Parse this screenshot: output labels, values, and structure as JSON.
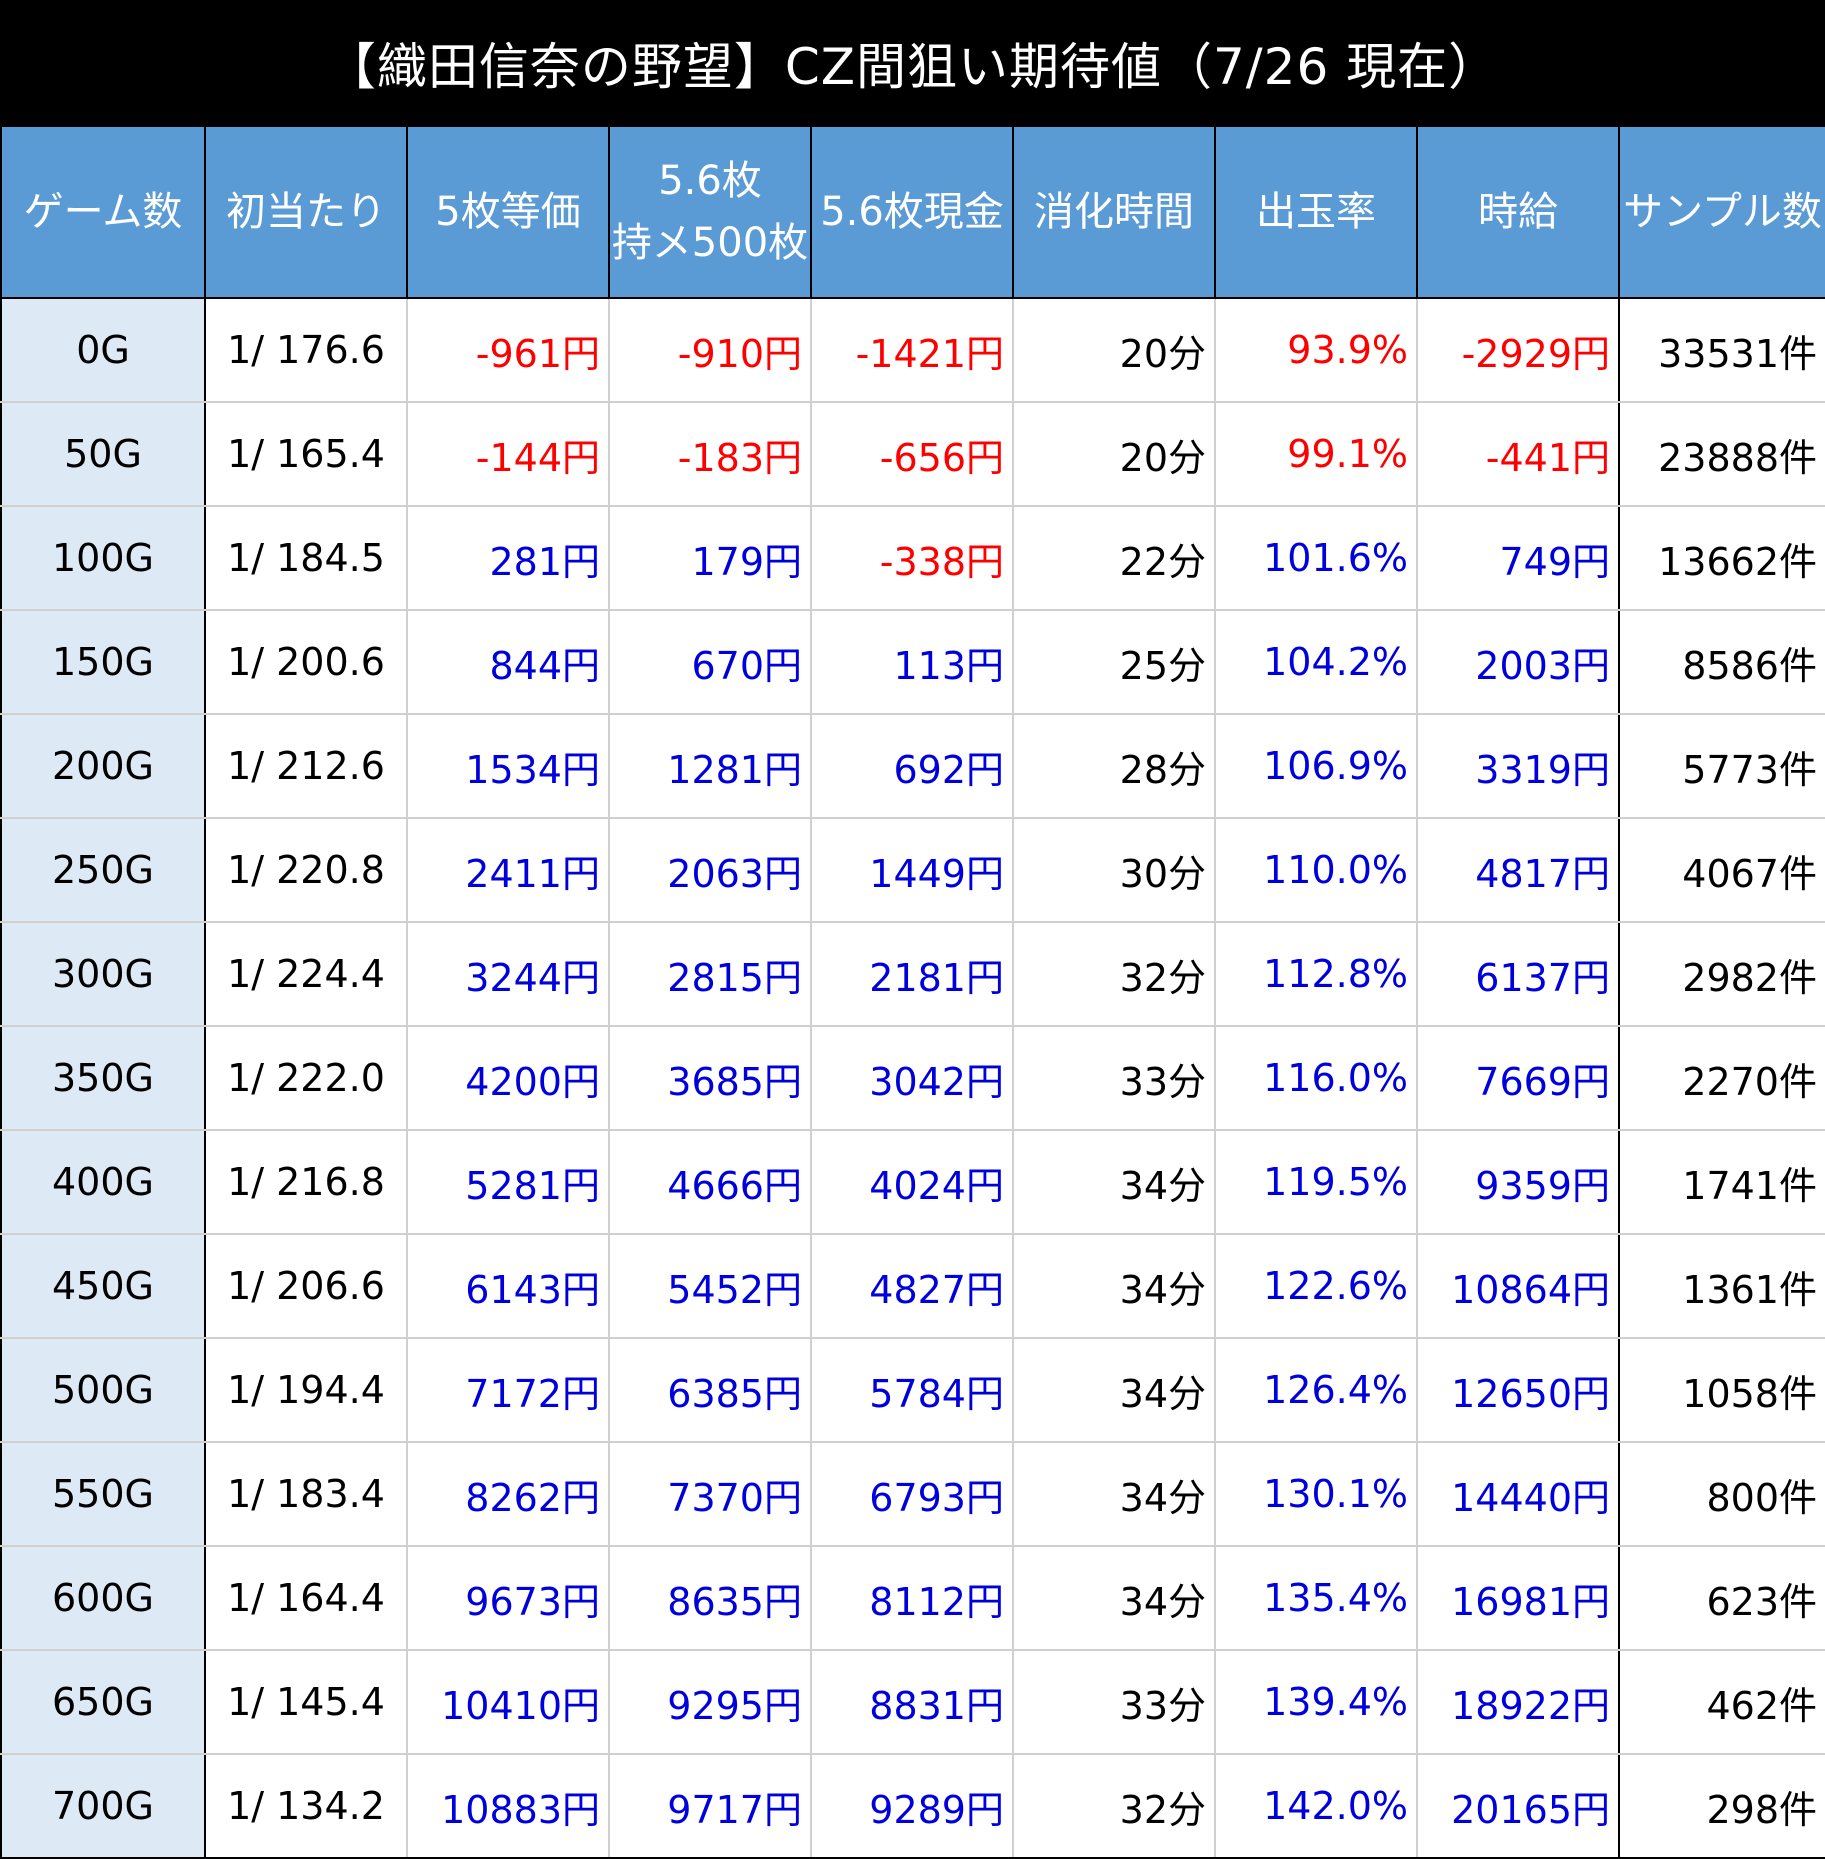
{
  "title": "【織田信奈の野望】CZ間狙い期待値（7/26 現在）",
  "headers": {
    "game": "ゲーム数",
    "hit": "初当たり",
    "equal5": "5枚等価",
    "hold_line1": "5.6枚",
    "hold_line2": "持メ500枚",
    "cash": "5.6枚現金",
    "time": "消化時間",
    "payout": "出玉率",
    "hourly": "時給",
    "samples": "サンプル数"
  },
  "colors": {
    "header_bg": "#5b9bd5",
    "first_col_bg": "#dde9f4",
    "negative_text": "#ff0000",
    "positive_text": "#0000dd"
  },
  "rows": [
    {
      "game": "0G",
      "hit": "1/ 176.6",
      "equal5": "-961円",
      "hold": "-910円",
      "cash": "-1421円",
      "time": "20分",
      "payout": "93.9%",
      "hourly": "-2929円",
      "samples": "33531件"
    },
    {
      "game": "50G",
      "hit": "1/ 165.4",
      "equal5": "-144円",
      "hold": "-183円",
      "cash": "-656円",
      "time": "20分",
      "payout": "99.1%",
      "hourly": "-441円",
      "samples": "23888件"
    },
    {
      "game": "100G",
      "hit": "1/ 184.5",
      "equal5": "281円",
      "hold": "179円",
      "cash": "-338円",
      "time": "22分",
      "payout": "101.6%",
      "hourly": "749円",
      "samples": "13662件"
    },
    {
      "game": "150G",
      "hit": "1/ 200.6",
      "equal5": "844円",
      "hold": "670円",
      "cash": "113円",
      "time": "25分",
      "payout": "104.2%",
      "hourly": "2003円",
      "samples": "8586件"
    },
    {
      "game": "200G",
      "hit": "1/ 212.6",
      "equal5": "1534円",
      "hold": "1281円",
      "cash": "692円",
      "time": "28分",
      "payout": "106.9%",
      "hourly": "3319円",
      "samples": "5773件"
    },
    {
      "game": "250G",
      "hit": "1/ 220.8",
      "equal5": "2411円",
      "hold": "2063円",
      "cash": "1449円",
      "time": "30分",
      "payout": "110.0%",
      "hourly": "4817円",
      "samples": "4067件"
    },
    {
      "game": "300G",
      "hit": "1/ 224.4",
      "equal5": "3244円",
      "hold": "2815円",
      "cash": "2181円",
      "time": "32分",
      "payout": "112.8%",
      "hourly": "6137円",
      "samples": "2982件"
    },
    {
      "game": "350G",
      "hit": "1/ 222.0",
      "equal5": "4200円",
      "hold": "3685円",
      "cash": "3042円",
      "time": "33分",
      "payout": "116.0%",
      "hourly": "7669円",
      "samples": "2270件"
    },
    {
      "game": "400G",
      "hit": "1/ 216.8",
      "equal5": "5281円",
      "hold": "4666円",
      "cash": "4024円",
      "time": "34分",
      "payout": "119.5%",
      "hourly": "9359円",
      "samples": "1741件"
    },
    {
      "game": "450G",
      "hit": "1/ 206.6",
      "equal5": "6143円",
      "hold": "5452円",
      "cash": "4827円",
      "time": "34分",
      "payout": "122.6%",
      "hourly": "10864円",
      "samples": "1361件"
    },
    {
      "game": "500G",
      "hit": "1/ 194.4",
      "equal5": "7172円",
      "hold": "6385円",
      "cash": "5784円",
      "time": "34分",
      "payout": "126.4%",
      "hourly": "12650円",
      "samples": "1058件"
    },
    {
      "game": "550G",
      "hit": "1/ 183.4",
      "equal5": "8262円",
      "hold": "7370円",
      "cash": "6793円",
      "time": "34分",
      "payout": "130.1%",
      "hourly": "14440円",
      "samples": "800件"
    },
    {
      "game": "600G",
      "hit": "1/ 164.4",
      "equal5": "9673円",
      "hold": "8635円",
      "cash": "8112円",
      "time": "34分",
      "payout": "135.4%",
      "hourly": "16981円",
      "samples": "623件"
    },
    {
      "game": "650G",
      "hit": "1/ 145.4",
      "equal5": "10410円",
      "hold": "9295円",
      "cash": "8831円",
      "time": "33分",
      "payout": "139.4%",
      "hourly": "18922円",
      "samples": "462件"
    },
    {
      "game": "700G",
      "hit": "1/ 134.2",
      "equal5": "10883円",
      "hold": "9717円",
      "cash": "9289円",
      "time": "32分",
      "payout": "142.0%",
      "hourly": "20165円",
      "samples": "298件"
    }
  ]
}
